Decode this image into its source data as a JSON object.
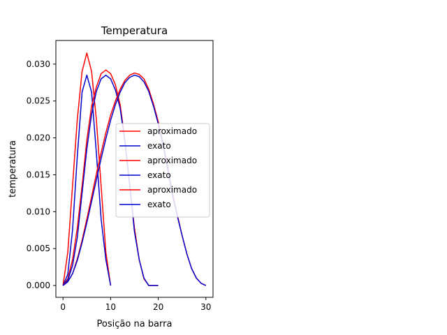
{
  "chart_data": {
    "type": "line",
    "title": "Temperatura",
    "xlabel": "Posição na barra",
    "ylabel": "temperatura",
    "xlim": [
      -1.5,
      31.5
    ],
    "ylim": [
      -0.0016,
      0.0332
    ],
    "xticks": [
      0,
      10,
      20,
      30
    ],
    "yticks": [
      0.0,
      0.005,
      0.01,
      0.015,
      0.02,
      0.025,
      0.03
    ],
    "ytick_labels": [
      "0.000",
      "0.005",
      "0.010",
      "0.015",
      "0.020",
      "0.025",
      "0.030"
    ],
    "grid": false,
    "legend_position": "center-right",
    "series": [
      {
        "name": "aproximado",
        "color": "#ff0000",
        "x": [
          0,
          1,
          2,
          3,
          4,
          5,
          6,
          7,
          8,
          9,
          10
        ],
        "y": [
          0.0,
          0.0045,
          0.0135,
          0.0225,
          0.029,
          0.0315,
          0.029,
          0.0225,
          0.0135,
          0.0045,
          0.0
        ]
      },
      {
        "name": "exato",
        "color": "#0000cc",
        "x": [
          0,
          1,
          2,
          3,
          4,
          5,
          6,
          7,
          8,
          9,
          10
        ],
        "y": [
          0.0,
          0.0015,
          0.0075,
          0.0175,
          0.0262,
          0.0285,
          0.0262,
          0.018,
          0.009,
          0.0035,
          0.0
        ]
      },
      {
        "name": "aproximado",
        "color": "#ff0000",
        "x": [
          0,
          1,
          2,
          3,
          4,
          5,
          6,
          7,
          8,
          9,
          10,
          11,
          12,
          13,
          14,
          15,
          16,
          17,
          18,
          19,
          20
        ],
        "y": [
          0.0,
          0.0009,
          0.0035,
          0.0078,
          0.0135,
          0.0197,
          0.0243,
          0.0269,
          0.0287,
          0.0292,
          0.0287,
          0.0272,
          0.0245,
          0.0197,
          0.0135,
          0.0078,
          0.0035,
          0.0009,
          0.0,
          0.0,
          0.0
        ]
      },
      {
        "name": "exato",
        "color": "#0000cc",
        "x": [
          0,
          1,
          2,
          3,
          4,
          5,
          6,
          7,
          8,
          9,
          10,
          11,
          12,
          13,
          14,
          15,
          16,
          17,
          18,
          19,
          20
        ],
        "y": [
          0.0,
          0.0007,
          0.0027,
          0.0065,
          0.0125,
          0.0185,
          0.0232,
          0.0263,
          0.028,
          0.0285,
          0.028,
          0.0265,
          0.024,
          0.0195,
          0.0137,
          0.0073,
          0.0035,
          0.001,
          0.0,
          0.0,
          0.0
        ]
      },
      {
        "name": "aproximado",
        "color": "#ff0000",
        "x": [
          0,
          1,
          2,
          3,
          4,
          5,
          6,
          7,
          8,
          9,
          10,
          11,
          12,
          13,
          14,
          15,
          16,
          17,
          18,
          19,
          20,
          21,
          22,
          23,
          24,
          25,
          26,
          27,
          28,
          29,
          30
        ],
        "y": [
          0.0,
          0.0005,
          0.0016,
          0.0036,
          0.0061,
          0.009,
          0.012,
          0.0151,
          0.018,
          0.0207,
          0.0231,
          0.025,
          0.0266,
          0.0278,
          0.0285,
          0.0288,
          0.0286,
          0.028,
          0.0266,
          0.0246,
          0.0222,
          0.0193,
          0.016,
          0.0125,
          0.0096,
          0.0068,
          0.0043,
          0.0023,
          0.001,
          0.0003,
          0.0
        ]
      },
      {
        "name": "exato",
        "color": "#0000cc",
        "x": [
          0,
          1,
          2,
          3,
          4,
          5,
          6,
          7,
          8,
          9,
          10,
          11,
          12,
          13,
          14,
          15,
          16,
          17,
          18,
          19,
          20,
          21,
          22,
          23,
          24,
          25,
          26,
          27,
          28,
          29,
          30
        ],
        "y": [
          0.0,
          0.0005,
          0.0016,
          0.0034,
          0.0058,
          0.0085,
          0.0114,
          0.0143,
          0.0172,
          0.0199,
          0.0224,
          0.0245,
          0.0262,
          0.0275,
          0.0282,
          0.0285,
          0.0283,
          0.0276,
          0.0263,
          0.0243,
          0.0219,
          0.019,
          0.0157,
          0.0122,
          0.0094,
          0.0068,
          0.0043,
          0.0023,
          0.001,
          0.0003,
          0.0
        ]
      }
    ]
  }
}
